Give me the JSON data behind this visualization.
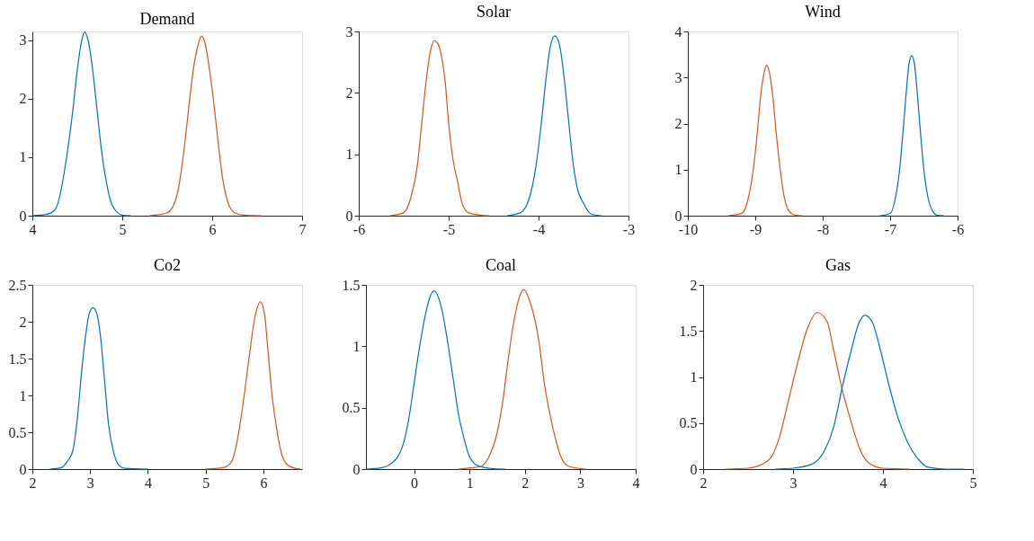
{
  "chart_data": [
    {
      "type": "line",
      "title": "Demand",
      "xlim": [
        4,
        7
      ],
      "xticks": [
        4,
        5,
        6,
        7
      ],
      "ylim": [
        0,
        3.15
      ],
      "yticks": [
        0,
        1,
        2,
        3
      ],
      "grid": false,
      "series": [
        {
          "color": "#0072bd",
          "x": [
            4.0,
            4.15,
            4.25,
            4.3,
            4.35,
            4.4,
            4.45,
            4.5,
            4.55,
            4.58,
            4.62,
            4.67,
            4.72,
            4.77,
            4.82,
            4.87,
            4.92,
            5.0,
            5.1
          ],
          "values": [
            0,
            0.02,
            0.1,
            0.3,
            0.7,
            1.2,
            1.8,
            2.5,
            3.0,
            3.14,
            3.0,
            2.5,
            1.8,
            1.1,
            0.6,
            0.25,
            0.1,
            0.01,
            0
          ]
        },
        {
          "color": "#d95319",
          "x": [
            5.3,
            5.5,
            5.6,
            5.65,
            5.7,
            5.75,
            5.8,
            5.84,
            5.88,
            5.92,
            5.97,
            6.02,
            6.07,
            6.12,
            6.17,
            6.25,
            6.35,
            6.55
          ],
          "values": [
            0,
            0.05,
            0.3,
            0.7,
            1.3,
            2.0,
            2.6,
            2.9,
            3.07,
            2.95,
            2.5,
            1.9,
            1.2,
            0.6,
            0.25,
            0.05,
            0.01,
            0
          ]
        }
      ]
    },
    {
      "type": "line",
      "title": "Solar",
      "xlim": [
        -6,
        -3
      ],
      "xticks": [
        -6,
        -5,
        -4,
        -3
      ],
      "ylim": [
        0,
        3
      ],
      "yticks": [
        0,
        1,
        2,
        3
      ],
      "grid": false,
      "series": [
        {
          "color": "#d95319",
          "x": [
            -5.65,
            -5.5,
            -5.42,
            -5.35,
            -5.3,
            -5.25,
            -5.2,
            -5.16,
            -5.12,
            -5.08,
            -5.04,
            -5.0,
            -4.95,
            -4.9,
            -4.85,
            -4.78,
            -4.65,
            -4.55
          ],
          "values": [
            0,
            0.05,
            0.3,
            0.8,
            1.5,
            2.2,
            2.7,
            2.85,
            2.8,
            2.6,
            2.2,
            1.5,
            0.9,
            0.55,
            0.2,
            0.05,
            0.01,
            0
          ]
        },
        {
          "color": "#0072bd",
          "x": [
            -4.35,
            -4.2,
            -4.1,
            -4.03,
            -3.97,
            -3.92,
            -3.87,
            -3.82,
            -3.77,
            -3.72,
            -3.67,
            -3.62,
            -3.57,
            -3.5,
            -3.42,
            -3.3
          ],
          "values": [
            0,
            0.05,
            0.3,
            0.8,
            1.5,
            2.2,
            2.75,
            2.93,
            2.8,
            2.3,
            1.6,
            0.9,
            0.45,
            0.2,
            0.03,
            0
          ]
        }
      ]
    },
    {
      "type": "line",
      "title": "Wind",
      "xlim": [
        -10,
        -6
      ],
      "xticks": [
        -10,
        -9,
        -8,
        -7,
        -6
      ],
      "ylim": [
        0,
        4
      ],
      "yticks": [
        0,
        1,
        2,
        3,
        4
      ],
      "grid": false,
      "series": [
        {
          "color": "#d95319",
          "x": [
            -9.4,
            -9.2,
            -9.1,
            -9.03,
            -8.97,
            -8.92,
            -8.87,
            -8.83,
            -8.79,
            -8.74,
            -8.69,
            -8.63,
            -8.57,
            -8.5,
            -8.4,
            -8.3
          ],
          "values": [
            0,
            0.05,
            0.4,
            1.0,
            1.8,
            2.6,
            3.1,
            3.27,
            3.1,
            2.6,
            1.8,
            1.0,
            0.4,
            0.1,
            0.01,
            0
          ]
        },
        {
          "color": "#0072bd",
          "x": [
            -7.15,
            -7.0,
            -6.92,
            -6.86,
            -6.81,
            -6.76,
            -6.72,
            -6.68,
            -6.64,
            -6.6,
            -6.55,
            -6.5,
            -6.44,
            -6.37,
            -6.3,
            -6.2
          ],
          "values": [
            0,
            0.05,
            0.4,
            1.0,
            1.8,
            2.7,
            3.3,
            3.47,
            3.3,
            2.7,
            1.8,
            1.0,
            0.4,
            0.1,
            0.01,
            0
          ]
        }
      ]
    },
    {
      "type": "line",
      "title": "Co2",
      "xlim": [
        2,
        6.67
      ],
      "xticks": [
        2,
        3,
        4,
        5,
        6
      ],
      "ylim": [
        0,
        2.5
      ],
      "yticks": [
        0,
        0.5,
        1,
        1.5,
        2,
        2.5
      ],
      "grid": false,
      "series": [
        {
          "color": "#0072bd",
          "x": [
            2.3,
            2.5,
            2.6,
            2.7,
            2.78,
            2.85,
            2.92,
            2.98,
            3.05,
            3.12,
            3.18,
            3.25,
            3.32,
            3.4,
            3.5,
            3.6,
            4.0
          ],
          "values": [
            0,
            0.02,
            0.1,
            0.25,
            0.7,
            1.3,
            1.8,
            2.1,
            2.19,
            2.1,
            1.8,
            1.2,
            0.6,
            0.25,
            0.05,
            0.01,
            0
          ]
        },
        {
          "color": "#d95319",
          "x": [
            5.0,
            5.3,
            5.45,
            5.55,
            5.65,
            5.75,
            5.85,
            5.95,
            6.02,
            6.08,
            6.15,
            6.22,
            6.3,
            6.4,
            6.55,
            6.65
          ],
          "values": [
            0,
            0.02,
            0.1,
            0.4,
            0.9,
            1.5,
            2.05,
            2.27,
            2.1,
            1.6,
            1.0,
            0.6,
            0.25,
            0.07,
            0.01,
            0
          ]
        }
      ]
    },
    {
      "type": "line",
      "title": "Coal",
      "xlim": [
        -0.87,
        4
      ],
      "xticks": [
        0,
        1,
        2,
        3,
        4
      ],
      "ylim": [
        0,
        1.5
      ],
      "yticks": [
        0,
        0.5,
        1,
        1.5
      ],
      "grid": false,
      "series": [
        {
          "color": "#0072bd",
          "x": [
            -0.87,
            -0.6,
            -0.4,
            -0.2,
            -0.1,
            0,
            0.1,
            0.2,
            0.3,
            0.36,
            0.5,
            0.6,
            0.7,
            0.8,
            0.9,
            1.0,
            1.1,
            1.2,
            1.4,
            1.65
          ],
          "values": [
            0,
            0.01,
            0.05,
            0.2,
            0.4,
            0.7,
            1.0,
            1.25,
            1.42,
            1.45,
            1.3,
            1.05,
            0.75,
            0.45,
            0.25,
            0.1,
            0.04,
            0.02,
            0.005,
            0
          ]
        },
        {
          "color": "#d95319",
          "x": [
            0.8,
            1.0,
            1.2,
            1.35,
            1.5,
            1.6,
            1.7,
            1.8,
            1.9,
            1.98,
            2.1,
            2.25,
            2.35,
            2.45,
            2.55,
            2.65,
            2.8,
            3.1
          ],
          "values": [
            0,
            0.01,
            0.02,
            0.1,
            0.3,
            0.55,
            0.9,
            1.2,
            1.4,
            1.46,
            1.35,
            1.05,
            0.7,
            0.45,
            0.25,
            0.1,
            0.02,
            0
          ]
        }
      ]
    },
    {
      "type": "line",
      "title": "Gas",
      "xlim": [
        2,
        5
      ],
      "xticks": [
        2,
        3,
        4,
        5
      ],
      "ylim": [
        0,
        2
      ],
      "yticks": [
        0,
        0.5,
        1,
        1.5,
        2
      ],
      "grid": false,
      "series": [
        {
          "color": "#d95319",
          "x": [
            2.25,
            2.5,
            2.6,
            2.75,
            2.85,
            2.95,
            3.05,
            3.15,
            3.27,
            3.38,
            3.45,
            3.55,
            3.65,
            3.75,
            3.85,
            4.0,
            4.3
          ],
          "values": [
            0,
            0.01,
            0.03,
            0.12,
            0.35,
            0.75,
            1.15,
            1.5,
            1.7,
            1.6,
            1.3,
            0.85,
            0.5,
            0.2,
            0.06,
            0.01,
            0
          ]
        },
        {
          "color": "#0072bd",
          "x": [
            2.8,
            3.0,
            3.2,
            3.35,
            3.45,
            3.55,
            3.65,
            3.73,
            3.8,
            3.88,
            3.97,
            4.07,
            4.17,
            4.27,
            4.4,
            4.5,
            4.7,
            4.9
          ],
          "values": [
            0,
            0.01,
            0.05,
            0.2,
            0.45,
            0.9,
            1.3,
            1.58,
            1.67,
            1.6,
            1.3,
            0.9,
            0.55,
            0.3,
            0.1,
            0.02,
            0,
            0
          ]
        }
      ]
    }
  ]
}
